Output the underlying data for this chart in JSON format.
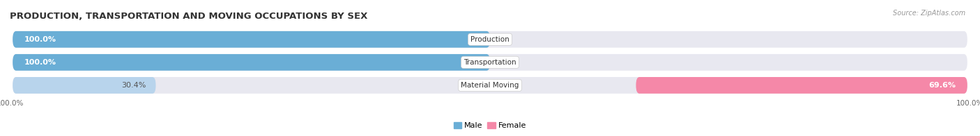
{
  "title": "PRODUCTION, TRANSPORTATION AND MOVING OCCUPATIONS BY SEX",
  "source": "Source: ZipAtlas.com",
  "categories": [
    "Production",
    "Transportation",
    "Material Moving"
  ],
  "male_pct": [
    100.0,
    100.0,
    30.4
  ],
  "female_pct": [
    0.0,
    0.0,
    69.6
  ],
  "male_color": "#6aaed6",
  "female_color": "#f588a8",
  "male_light_color": "#b8d4ec",
  "female_light_color": "#f5c0d0",
  "bar_bg_color": "#e8e8f0",
  "title_fontsize": 9.5,
  "source_fontsize": 7,
  "tick_fontsize": 7.5,
  "bar_label_fontsize": 8,
  "cat_label_fontsize": 7.5,
  "pct_label_fontsize": 8
}
